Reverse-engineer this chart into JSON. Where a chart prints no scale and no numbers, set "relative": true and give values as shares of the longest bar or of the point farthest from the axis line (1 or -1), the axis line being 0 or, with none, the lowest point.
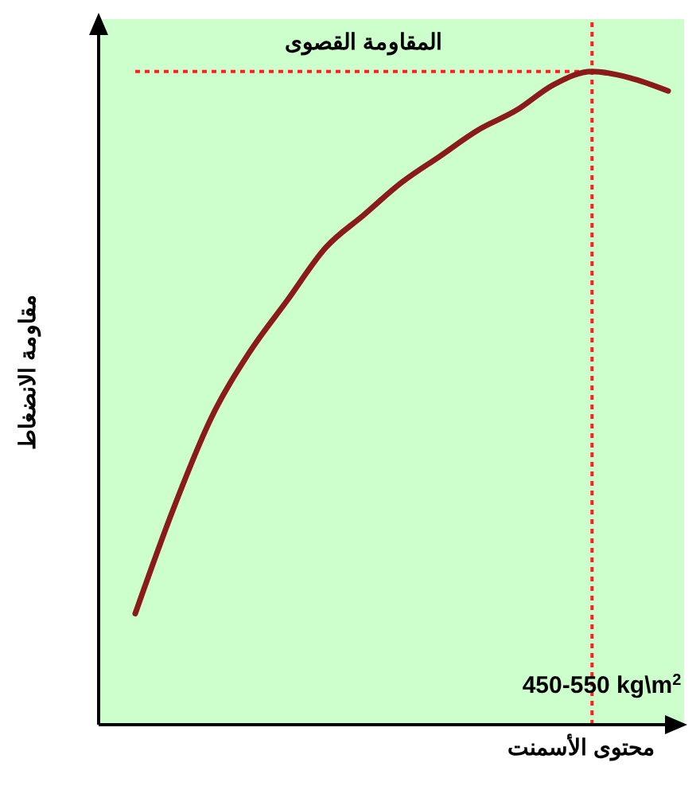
{
  "chart_data": {
    "type": "line",
    "relative": true,
    "ylabel": "مقاومة الانضغاط",
    "xlabel": "محتوى الأسمنت",
    "marker": "none",
    "line_style": "solid",
    "categories": [
      null,
      null,
      null,
      null,
      null,
      null,
      null,
      null,
      null,
      null,
      null,
      null,
      null,
      null,
      null
    ],
    "series": [
      {
        "color": "#8b1a1a",
        "values": [
          0.17,
          0.33,
          0.47,
          0.57,
          0.65,
          0.73,
          0.78,
          0.83,
          0.87,
          0.91,
          0.94,
          0.98,
          1,
          0.99,
          0.97
        ]
      }
    ],
    "ref_lines": [
      {
        "axis": "y",
        "value": 1,
        "label": "المقاومة القصوى",
        "color": "#ff2020",
        "line_style": "dotted"
      }
    ],
    "annotations": [
      "450-550 kg\\m$^{2}$"
    ]
  }
}
